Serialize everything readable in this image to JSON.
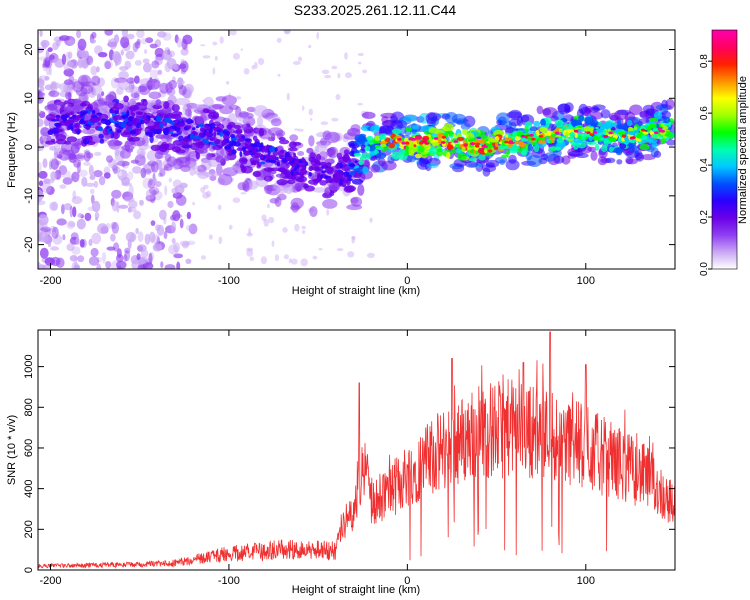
{
  "title": "S233.2025.261.12.11.C44",
  "chart_data": [
    {
      "type": "heatmap",
      "xlabel": "Height of straight line (km)",
      "ylabel": "Frequency (Hz)",
      "xlim": [
        -207,
        150
      ],
      "ylim": [
        -25,
        24
      ],
      "xticks": [
        -200,
        -100,
        0,
        100
      ],
      "yticks": [
        -20,
        -10,
        0,
        10,
        20
      ],
      "colorbar": {
        "label": "Normalized spectral amplitude",
        "range": [
          0,
          0.92
        ],
        "ticks": [
          "0.0",
          "0.2",
          "0.4",
          "0.6",
          "0.8"
        ],
        "tick_values": [
          0.0,
          0.2,
          0.4,
          0.6,
          0.8
        ],
        "colors": [
          "#ffffff",
          "#c9a7f5",
          "#8f3ef0",
          "#6a00e8",
          "#2a00ff",
          "#0050ff",
          "#00c8ff",
          "#00ffb0",
          "#00ff00",
          "#a0ff00",
          "#ffff00",
          "#ff9000",
          "#ff2000",
          "#ff0060",
          "#ff00b0"
        ]
      },
      "ridge": [
        {
          "x": -190,
          "f": 5.0,
          "a": 0.25
        },
        {
          "x": -170,
          "f": 5.5,
          "a": 0.28
        },
        {
          "x": -150,
          "f": 5.0,
          "a": 0.26
        },
        {
          "x": -130,
          "f": 4.0,
          "a": 0.27
        },
        {
          "x": -110,
          "f": 2.5,
          "a": 0.26
        },
        {
          "x": -90,
          "f": 0.0,
          "a": 0.25
        },
        {
          "x": -70,
          "f": -3.0,
          "a": 0.25
        },
        {
          "x": -50,
          "f": -5.0,
          "a": 0.25
        },
        {
          "x": -35,
          "f": -6.0,
          "a": 0.22
        },
        {
          "x": -20,
          "f": 1.0,
          "a": 0.55
        },
        {
          "x": 0,
          "f": 1.0,
          "a": 0.75
        },
        {
          "x": 20,
          "f": 1.5,
          "a": 0.72
        },
        {
          "x": 40,
          "f": 0.0,
          "a": 0.7
        },
        {
          "x": 60,
          "f": 1.5,
          "a": 0.65
        },
        {
          "x": 80,
          "f": 2.5,
          "a": 0.62
        },
        {
          "x": 100,
          "f": 3.0,
          "a": 0.55
        },
        {
          "x": 120,
          "f": 2.0,
          "a": 0.55
        },
        {
          "x": 140,
          "f": 3.5,
          "a": 0.6
        }
      ]
    },
    {
      "type": "line",
      "xlabel": "Height of straight line (km)",
      "ylabel": "SNR (10 * v/v)",
      "xlim": [
        -207,
        150
      ],
      "ylim": [
        0,
        1180
      ],
      "xticks": [
        -200,
        -100,
        0,
        100
      ],
      "yticks": [
        0,
        200,
        400,
        600,
        800,
        1000
      ],
      "color": "#f03030",
      "trend": [
        {
          "x": -207,
          "snr": 20
        },
        {
          "x": -160,
          "snr": 25
        },
        {
          "x": -130,
          "snr": 35
        },
        {
          "x": -100,
          "snr": 80
        },
        {
          "x": -70,
          "snr": 100
        },
        {
          "x": -40,
          "snr": 95
        },
        {
          "x": -38,
          "snr": 200
        },
        {
          "x": -30,
          "snr": 300
        },
        {
          "x": -24,
          "snr": 500
        },
        {
          "x": -20,
          "snr": 340
        },
        {
          "x": -10,
          "snr": 380
        },
        {
          "x": 0,
          "snr": 470
        },
        {
          "x": 20,
          "snr": 590
        },
        {
          "x": 40,
          "snr": 680
        },
        {
          "x": 60,
          "snr": 700
        },
        {
          "x": 80,
          "snr": 670
        },
        {
          "x": 100,
          "snr": 600
        },
        {
          "x": 120,
          "snr": 520
        },
        {
          "x": 135,
          "snr": 450
        },
        {
          "x": 150,
          "snr": 310
        }
      ],
      "peaks": [
        {
          "x": -27,
          "snr": 920
        },
        {
          "x": 25,
          "snr": 1040
        },
        {
          "x": 65,
          "snr": 1020
        },
        {
          "x": 80,
          "snr": 1170
        },
        {
          "x": 100,
          "snr": 1010
        }
      ]
    }
  ]
}
